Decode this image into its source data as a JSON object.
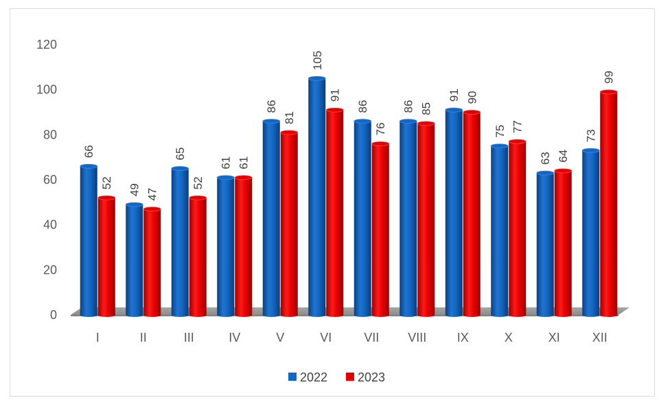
{
  "chart_data": {
    "type": "bar",
    "categories": [
      "I",
      "II",
      "III",
      "IV",
      "V",
      "VI",
      "VII",
      "VIII",
      "IX",
      "X",
      "XI",
      "XII"
    ],
    "series": [
      {
        "name": "2022",
        "color": "#1467c4",
        "values": [
          66,
          49,
          65,
          61,
          86,
          105,
          86,
          86,
          91,
          75,
          63,
          73
        ]
      },
      {
        "name": "2023",
        "color": "#e50000",
        "values": [
          52,
          47,
          52,
          61,
          81,
          91,
          76,
          85,
          90,
          77,
          64,
          99
        ]
      }
    ],
    "ylim": [
      0,
      120
    ],
    "yticks": [
      0,
      20,
      40,
      60,
      80,
      100,
      120
    ],
    "grid": false,
    "legend_position": "bottom",
    "style": "3d-cylinder",
    "data_labels": "rotated-vertical"
  }
}
